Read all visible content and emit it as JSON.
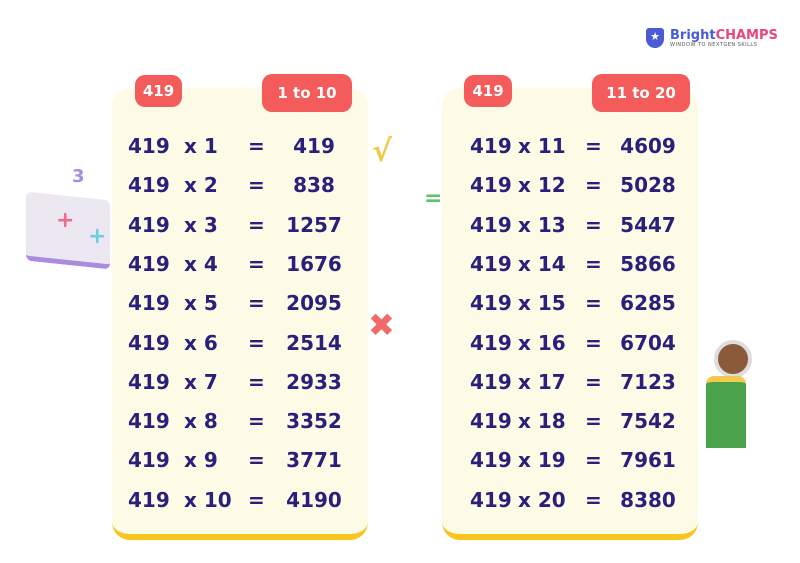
{
  "brand": {
    "name_part1": "Bright",
    "name_part2": "CHAMPS",
    "tagline": "WINDOW TO NEXTGEN SKILLS",
    "icon": "star-shield-icon"
  },
  "colors": {
    "badge": "#f45b5b",
    "card": "#fdfae6",
    "text": "#2a1f7a",
    "card_border": "#f7c51e"
  },
  "tables": [
    {
      "number": "419",
      "range": "1 to 10",
      "rows": [
        {
          "a": "419",
          "m": "x 1",
          "eq": "=",
          "r": "419"
        },
        {
          "a": "419",
          "m": "x 2",
          "eq": "=",
          "r": "838"
        },
        {
          "a": "419",
          "m": "x 3",
          "eq": "=",
          "r": "1257"
        },
        {
          "a": "419",
          "m": "x 4",
          "eq": "=",
          "r": "1676"
        },
        {
          "a": "419",
          "m": "x 5",
          "eq": "=",
          "r": "2095"
        },
        {
          "a": "419",
          "m": "x 6",
          "eq": "=",
          "r": "2514"
        },
        {
          "a": "419",
          "m": "x 7",
          "eq": "=",
          "r": "2933"
        },
        {
          "a": "419",
          "m": "x 8",
          "eq": "=",
          "r": "3352"
        },
        {
          "a": "419",
          "m": "x 9",
          "eq": "=",
          "r": "3771"
        },
        {
          "a": "419",
          "m": "x 10",
          "eq": "=",
          "r": "4190"
        }
      ]
    },
    {
      "number": "419",
      "range": "11 to 20",
      "rows": [
        {
          "a": "419",
          "m": "x 11",
          "eq": "=",
          "r": "4609"
        },
        {
          "a": "419",
          "m": "x 12",
          "eq": "=",
          "r": "5028"
        },
        {
          "a": "419",
          "m": "x 13",
          "eq": "=",
          "r": "5447"
        },
        {
          "a": "419",
          "m": "x 14",
          "eq": "=",
          "r": "5866"
        },
        {
          "a": "419",
          "m": "x 15",
          "eq": "=",
          "r": "6285"
        },
        {
          "a": "419",
          "m": "x 16",
          "eq": "=",
          "r": "6704"
        },
        {
          "a": "419",
          "m": "x 17",
          "eq": "=",
          "r": "7123"
        },
        {
          "a": "419",
          "m": "x 18",
          "eq": "=",
          "r": "7542"
        },
        {
          "a": "419",
          "m": "x 19",
          "eq": "=",
          "r": "7961"
        },
        {
          "a": "419",
          "m": "x 20",
          "eq": "=",
          "r": "8380"
        }
      ]
    }
  ]
}
